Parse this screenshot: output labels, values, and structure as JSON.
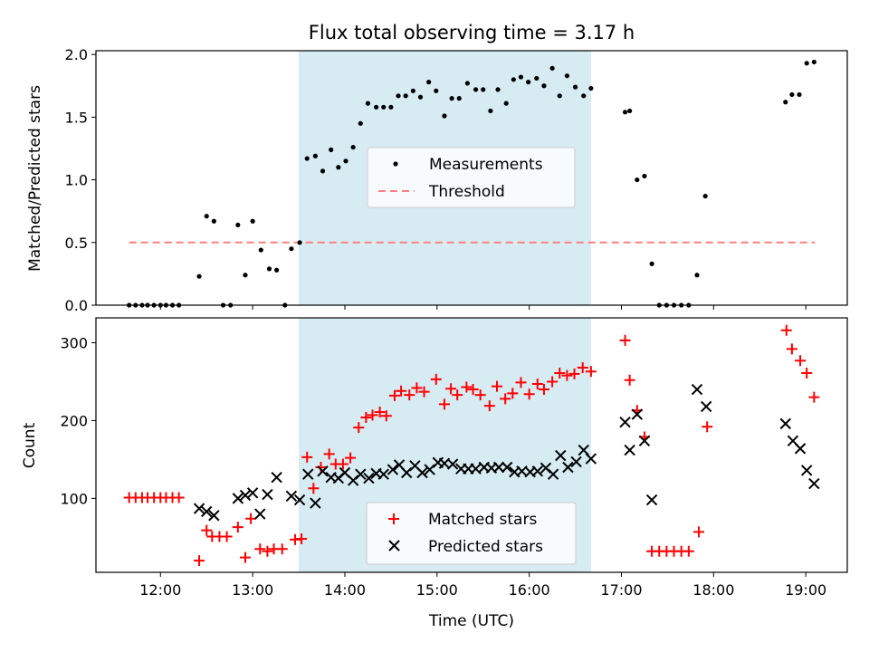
{
  "chart_data": [
    {
      "type": "scatter",
      "title": "Flux total observing time = 3.17 h",
      "ylabel": "Matched/Predicted stars",
      "xlabel": "",
      "xlim": [
        11.3,
        19.45
      ],
      "ylim": [
        0.0,
        2.03
      ],
      "yticks": [
        0.0,
        0.5,
        1.0,
        1.5,
        2.0
      ],
      "ytick_labels": [
        "0.0",
        "0.5",
        "1.0",
        "1.5",
        "2.0"
      ],
      "shaded_span": [
        13.5,
        16.67
      ],
      "legend": {
        "placement": "center",
        "entries": [
          "Measurements",
          "Threshold"
        ]
      },
      "series": [
        {
          "name": "Measurements",
          "marker": "dot",
          "color": "#000000",
          "points": [
            [
              11.66,
              0.0
            ],
            [
              11.73,
              0.0
            ],
            [
              11.8,
              0.0
            ],
            [
              11.86,
              0.0
            ],
            [
              11.93,
              0.0
            ],
            [
              12.0,
              0.0
            ],
            [
              12.06,
              0.0
            ],
            [
              12.13,
              0.0
            ],
            [
              12.2,
              0.0
            ],
            [
              12.42,
              0.23
            ],
            [
              12.5,
              0.71
            ],
            [
              12.58,
              0.67
            ],
            [
              12.68,
              0.0
            ],
            [
              12.76,
              0.0
            ],
            [
              12.84,
              0.64
            ],
            [
              12.92,
              0.24
            ],
            [
              13.0,
              0.67
            ],
            [
              13.09,
              0.44
            ],
            [
              13.18,
              0.29
            ],
            [
              13.26,
              0.28
            ],
            [
              13.35,
              0.0
            ],
            [
              13.42,
              0.45
            ],
            [
              13.51,
              0.5
            ],
            [
              13.59,
              1.17
            ],
            [
              13.68,
              1.19
            ],
            [
              13.76,
              1.07
            ],
            [
              13.85,
              1.24
            ],
            [
              13.93,
              1.1
            ],
            [
              14.01,
              1.15
            ],
            [
              14.09,
              1.26
            ],
            [
              14.17,
              1.45
            ],
            [
              14.25,
              1.61
            ],
            [
              14.34,
              1.58
            ],
            [
              14.42,
              1.58
            ],
            [
              14.5,
              1.58
            ],
            [
              14.58,
              1.67
            ],
            [
              14.66,
              1.67
            ],
            [
              14.74,
              1.71
            ],
            [
              14.82,
              1.66
            ],
            [
              14.91,
              1.78
            ],
            [
              14.99,
              1.71
            ],
            [
              15.08,
              1.51
            ],
            [
              15.16,
              1.65
            ],
            [
              15.24,
              1.65
            ],
            [
              15.33,
              1.77
            ],
            [
              15.42,
              1.72
            ],
            [
              15.5,
              1.72
            ],
            [
              15.58,
              1.55
            ],
            [
              15.66,
              1.72
            ],
            [
              15.75,
              1.61
            ],
            [
              15.83,
              1.8
            ],
            [
              15.91,
              1.82
            ],
            [
              15.99,
              1.78
            ],
            [
              16.08,
              1.81
            ],
            [
              16.16,
              1.75
            ],
            [
              16.25,
              1.89
            ],
            [
              16.33,
              1.67
            ],
            [
              16.41,
              1.83
            ],
            [
              16.5,
              1.74
            ],
            [
              16.59,
              1.67
            ],
            [
              16.67,
              1.73
            ],
            [
              17.04,
              1.54
            ],
            [
              17.09,
              1.55
            ],
            [
              17.17,
              1.0
            ],
            [
              17.25,
              1.03
            ],
            [
              17.33,
              0.33
            ],
            [
              17.41,
              0.0
            ],
            [
              17.49,
              0.0
            ],
            [
              17.57,
              0.0
            ],
            [
              17.65,
              0.0
            ],
            [
              17.73,
              0.0
            ],
            [
              17.82,
              0.24
            ],
            [
              17.91,
              0.87
            ],
            [
              18.78,
              1.62
            ],
            [
              18.85,
              1.68
            ],
            [
              18.93,
              1.68
            ],
            [
              19.01,
              1.93
            ],
            [
              19.09,
              1.94
            ]
          ]
        },
        {
          "name": "Threshold",
          "marker": "dashed-line",
          "color": "#ff7f7f",
          "points": [
            [
              11.66,
              0.5
            ],
            [
              19.1,
              0.5
            ]
          ]
        }
      ]
    },
    {
      "type": "scatter",
      "title": "",
      "ylabel": "Count",
      "xlabel": "Time (UTC)",
      "xlim": [
        11.3,
        19.45
      ],
      "ylim": [
        5,
        332
      ],
      "yticks": [
        100,
        200,
        300
      ],
      "ytick_labels": [
        "100",
        "200",
        "300"
      ],
      "xticks": [
        12,
        13,
        14,
        15,
        16,
        17,
        18,
        19
      ],
      "xtick_labels": [
        "12:00",
        "13:00",
        "14:00",
        "15:00",
        "16:00",
        "17:00",
        "18:00",
        "19:00"
      ],
      "shaded_span": [
        13.5,
        16.67
      ],
      "legend": {
        "placement": "lower center",
        "entries": [
          "Matched stars",
          "Predicted stars"
        ]
      },
      "series": [
        {
          "name": "Matched stars",
          "marker": "plus",
          "color": "#ff0000",
          "points": [
            [
              11.66,
              101
            ],
            [
              11.73,
              101
            ],
            [
              11.8,
              101
            ],
            [
              11.86,
              101
            ],
            [
              11.93,
              101
            ],
            [
              12.0,
              101
            ],
            [
              12.06,
              101
            ],
            [
              12.13,
              101
            ],
            [
              12.2,
              101
            ],
            [
              12.42,
              20
            ],
            [
              12.5,
              59
            ],
            [
              12.56,
              51
            ],
            [
              12.64,
              51
            ],
            [
              12.72,
              51
            ],
            [
              12.84,
              63
            ],
            [
              12.92,
              24
            ],
            [
              12.98,
              74
            ],
            [
              13.08,
              35
            ],
            [
              13.16,
              32
            ],
            [
              13.23,
              35
            ],
            [
              13.32,
              35
            ],
            [
              13.46,
              47
            ],
            [
              13.53,
              48
            ],
            [
              13.59,
              153
            ],
            [
              13.66,
              113
            ],
            [
              13.74,
              140
            ],
            [
              13.83,
              157
            ],
            [
              13.9,
              144
            ],
            [
              13.98,
              144
            ],
            [
              14.06,
              152
            ],
            [
              14.15,
              191
            ],
            [
              14.23,
              204
            ],
            [
              14.3,
              207
            ],
            [
              14.38,
              211
            ],
            [
              14.45,
              206
            ],
            [
              14.54,
              232
            ],
            [
              14.61,
              238
            ],
            [
              14.7,
              233
            ],
            [
              14.78,
              242
            ],
            [
              14.86,
              237
            ],
            [
              14.99,
              253
            ],
            [
              15.08,
              221
            ],
            [
              15.15,
              241
            ],
            [
              15.22,
              233
            ],
            [
              15.32,
              243
            ],
            [
              15.39,
              240
            ],
            [
              15.47,
              233
            ],
            [
              15.57,
              219
            ],
            [
              15.65,
              244
            ],
            [
              15.74,
              228
            ],
            [
              15.82,
              235
            ],
            [
              15.91,
              249
            ],
            [
              16.0,
              234
            ],
            [
              16.09,
              247
            ],
            [
              16.16,
              240
            ],
            [
              16.25,
              250
            ],
            [
              16.33,
              261
            ],
            [
              16.41,
              258
            ],
            [
              16.49,
              260
            ],
            [
              16.58,
              268
            ],
            [
              16.67,
              263
            ],
            [
              17.04,
              303
            ],
            [
              17.09,
              252
            ],
            [
              17.17,
              213
            ],
            [
              17.25,
              179
            ],
            [
              17.33,
              32
            ],
            [
              17.41,
              32
            ],
            [
              17.49,
              32
            ],
            [
              17.57,
              32
            ],
            [
              17.65,
              32
            ],
            [
              17.73,
              32
            ],
            [
              17.84,
              57
            ],
            [
              17.93,
              192
            ],
            [
              18.79,
              316
            ],
            [
              18.85,
              292
            ],
            [
              18.94,
              277
            ],
            [
              19.01,
              261
            ],
            [
              19.09,
              230
            ]
          ]
        },
        {
          "name": "Predicted stars",
          "marker": "x",
          "color": "#000000",
          "points": [
            [
              12.42,
              87
            ],
            [
              12.5,
              83
            ],
            [
              12.58,
              78
            ],
            [
              12.84,
              100
            ],
            [
              12.92,
              104
            ],
            [
              13.0,
              107
            ],
            [
              13.08,
              80
            ],
            [
              13.16,
              105
            ],
            [
              13.26,
              127
            ],
            [
              13.42,
              103
            ],
            [
              13.51,
              98
            ],
            [
              13.6,
              131
            ],
            [
              13.68,
              94
            ],
            [
              13.76,
              135
            ],
            [
              13.85,
              127
            ],
            [
              13.93,
              126
            ],
            [
              14.0,
              133
            ],
            [
              14.09,
              123
            ],
            [
              14.17,
              131
            ],
            [
              14.26,
              126
            ],
            [
              14.34,
              132
            ],
            [
              14.42,
              131
            ],
            [
              14.52,
              137
            ],
            [
              14.59,
              143
            ],
            [
              14.67,
              133
            ],
            [
              14.76,
              142
            ],
            [
              14.84,
              133
            ],
            [
              14.92,
              137
            ],
            [
              15.01,
              146
            ],
            [
              15.08,
              145
            ],
            [
              15.17,
              144
            ],
            [
              15.26,
              138
            ],
            [
              15.34,
              138
            ],
            [
              15.42,
              138
            ],
            [
              15.51,
              140
            ],
            [
              15.59,
              139
            ],
            [
              15.67,
              140
            ],
            [
              15.76,
              140
            ],
            [
              15.84,
              134
            ],
            [
              15.92,
              135
            ],
            [
              16.01,
              134
            ],
            [
              16.09,
              135
            ],
            [
              16.18,
              139
            ],
            [
              16.26,
              131
            ],
            [
              16.34,
              155
            ],
            [
              16.42,
              140
            ],
            [
              16.51,
              147
            ],
            [
              16.59,
              162
            ],
            [
              16.67,
              151
            ],
            [
              17.04,
              198
            ],
            [
              17.09,
              162
            ],
            [
              17.17,
              208
            ],
            [
              17.25,
              174
            ],
            [
              17.33,
              98
            ],
            [
              17.82,
              240
            ],
            [
              17.92,
              218
            ],
            [
              18.78,
              196
            ],
            [
              18.86,
              174
            ],
            [
              18.94,
              164
            ],
            [
              19.01,
              136
            ],
            [
              19.09,
              119
            ]
          ]
        }
      ]
    }
  ],
  "colors": {
    "shaded_span": "#add8e6",
    "threshold": "#ff7f7f",
    "matched": "#ff0000",
    "predicted": "#000000",
    "measurement": "#000000"
  }
}
